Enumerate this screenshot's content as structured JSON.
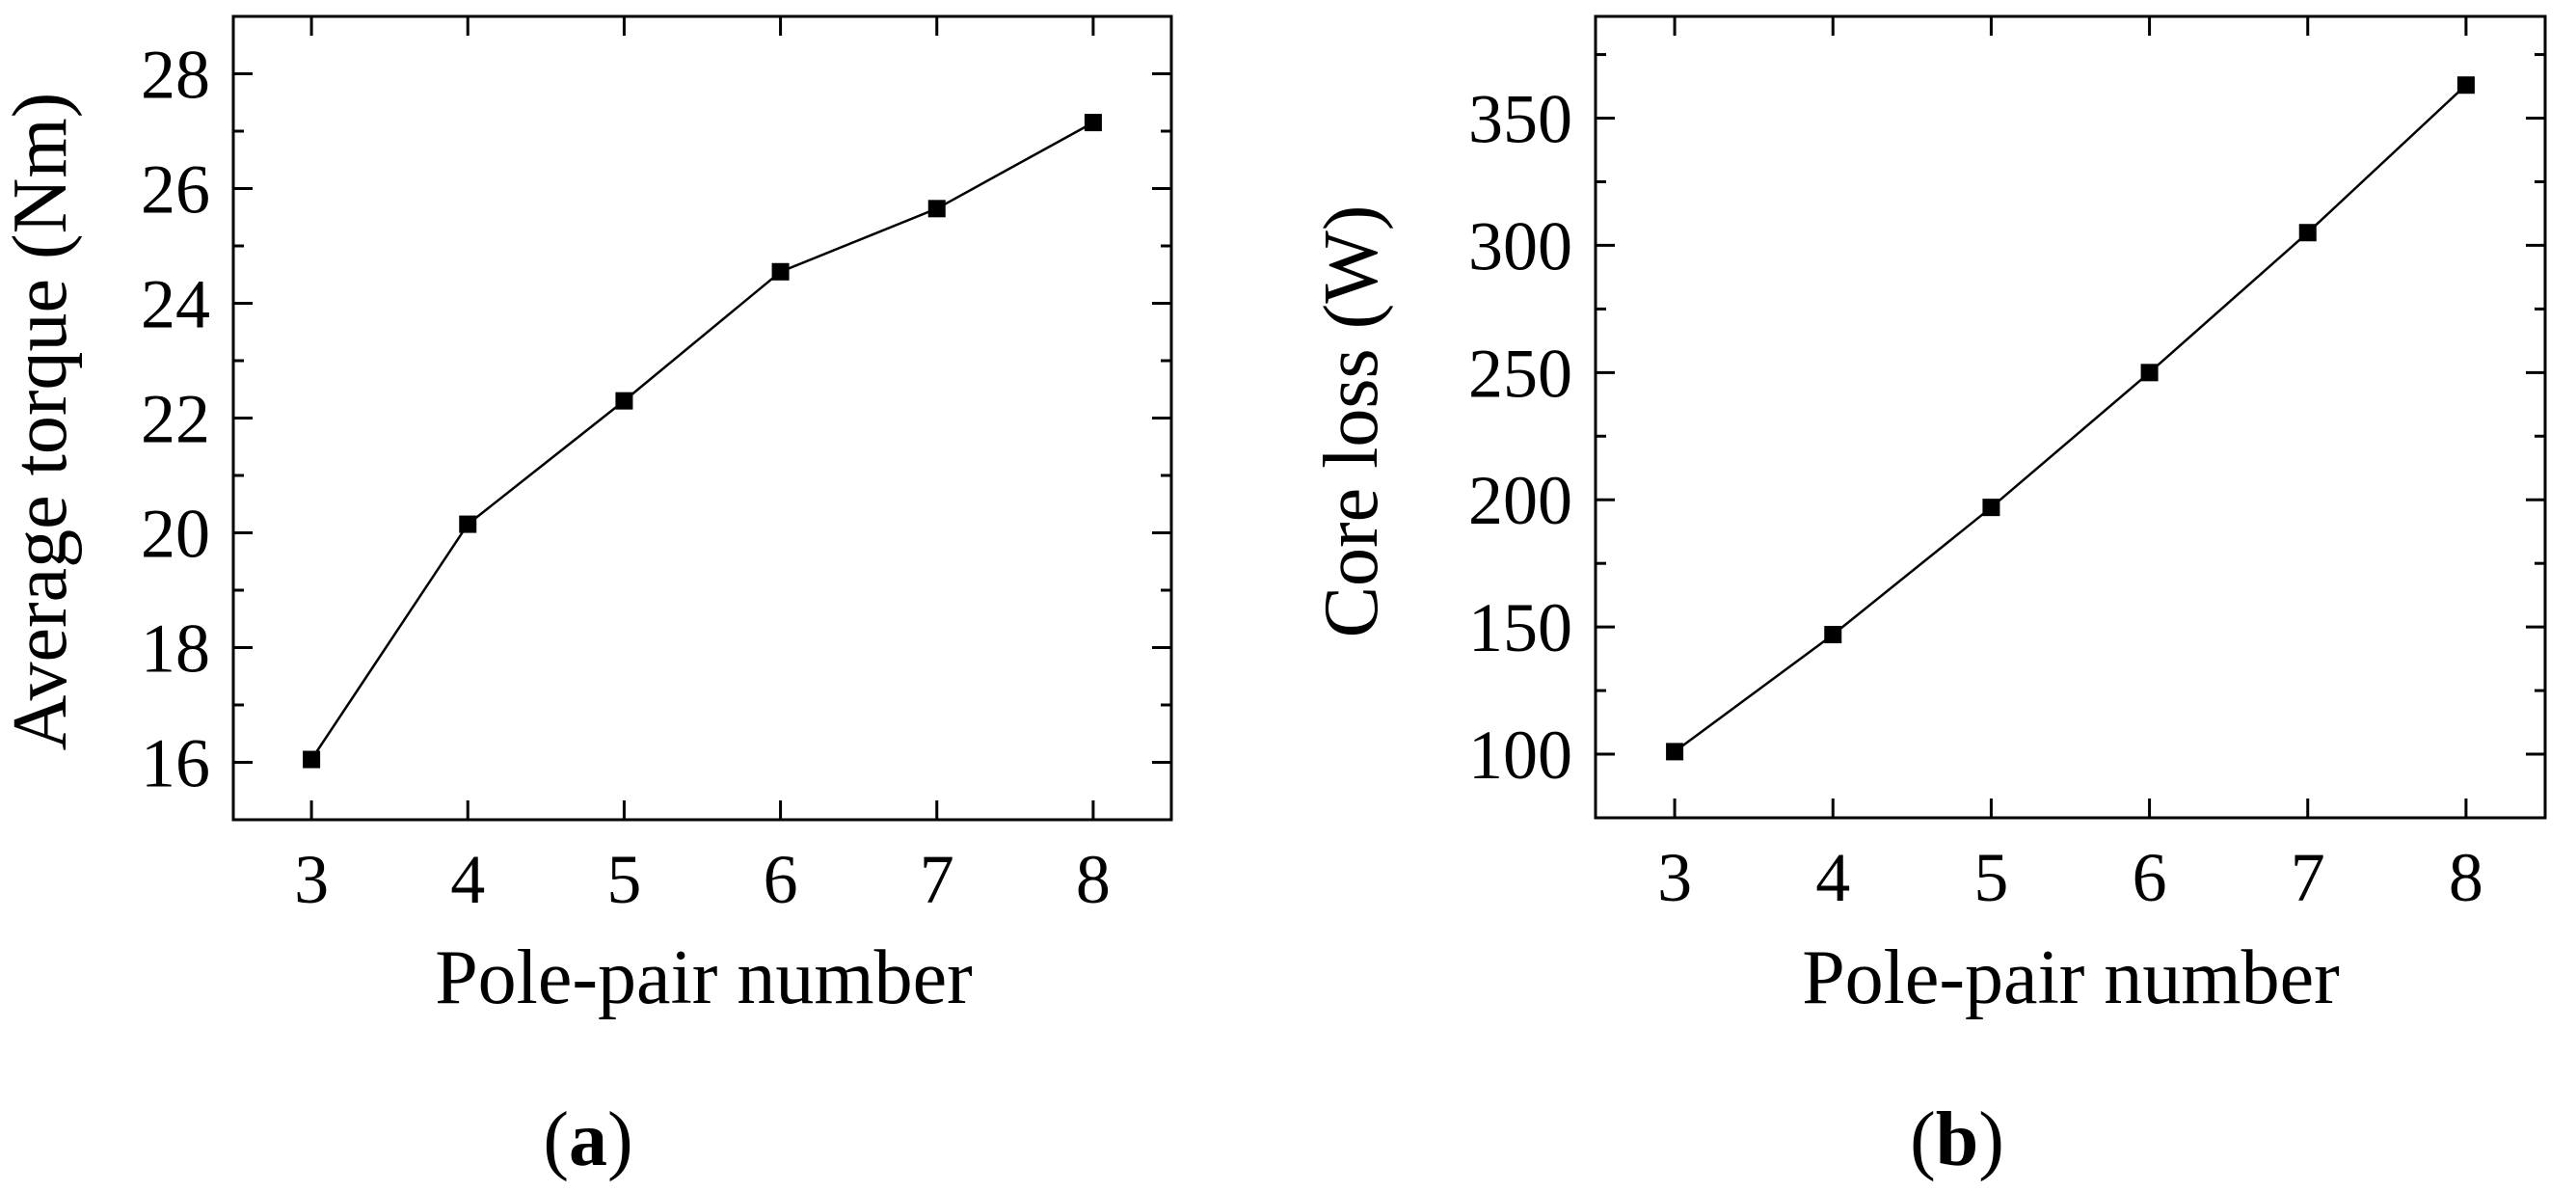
{
  "chart_data": [
    {
      "type": "line",
      "panel_label": {
        "open": "(",
        "letter": "a",
        "close": ")"
      },
      "xlabel": "Pole-pair number",
      "ylabel": "Average torque (Nm)",
      "x": [
        3,
        4,
        5,
        6,
        7,
        8
      ],
      "series": [
        {
          "values": [
            16.05,
            20.15,
            22.3,
            24.55,
            25.65,
            27.15
          ]
        }
      ],
      "xlim": [
        2.5,
        8.5
      ],
      "ylim": [
        15,
        29
      ],
      "xticks": [
        3,
        4,
        5,
        6,
        7,
        8
      ],
      "yticks": [
        16,
        18,
        20,
        22,
        24,
        26,
        28
      ],
      "marker": "square",
      "grid": false,
      "line_color": "#000000"
    },
    {
      "type": "line",
      "panel_label": {
        "open": "(",
        "letter": "b",
        "close": ")"
      },
      "xlabel": "Pole-pair number",
      "ylabel": "Core loss (W)",
      "x": [
        3,
        4,
        5,
        6,
        7,
        8
      ],
      "series": [
        {
          "values": [
            101,
            147,
            197,
            250,
            305,
            363
          ]
        }
      ],
      "xlim": [
        2.5,
        8.5
      ],
      "ylim": [
        75,
        390
      ],
      "xticks": [
        3,
        4,
        5,
        6,
        7,
        8
      ],
      "yticks": [
        100,
        150,
        200,
        250,
        300,
        350
      ],
      "marker": "square",
      "grid": false,
      "line_color": "#000000"
    }
  ]
}
